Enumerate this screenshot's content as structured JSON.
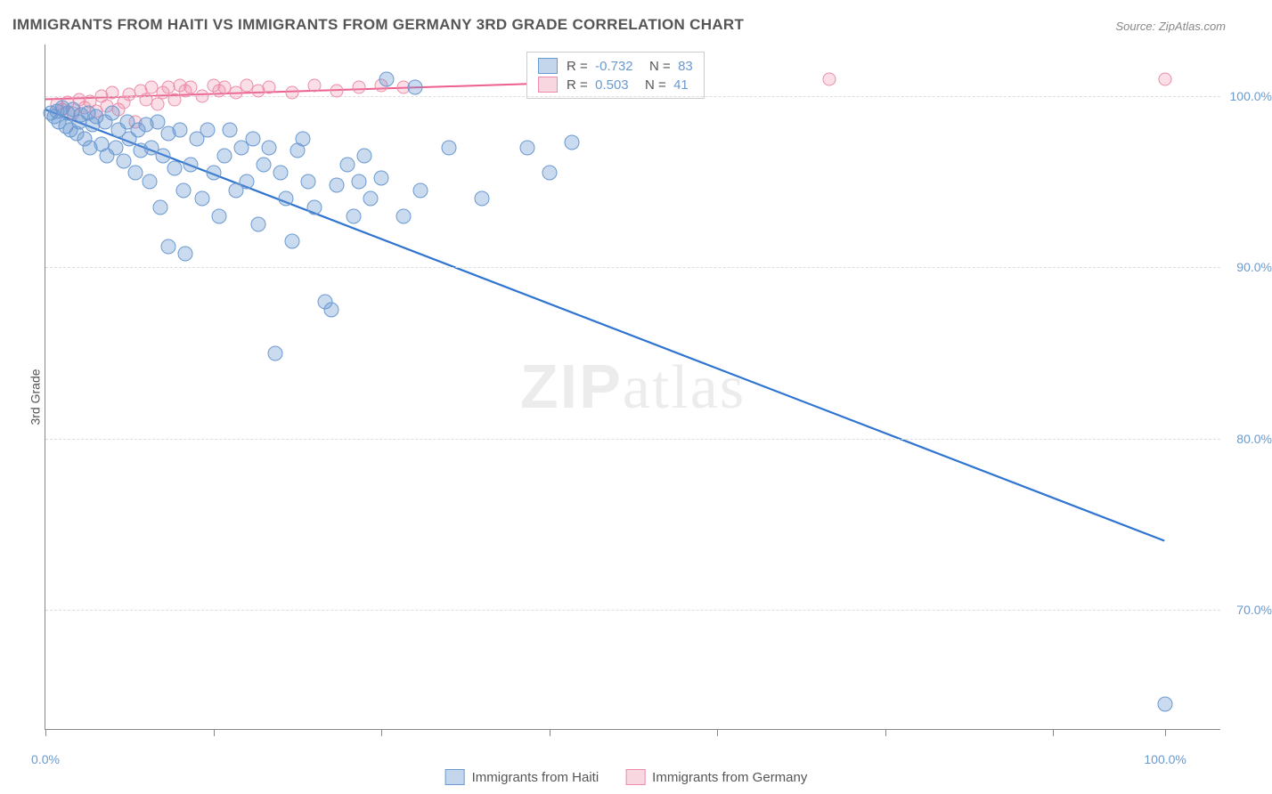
{
  "title": "IMMIGRANTS FROM HAITI VS IMMIGRANTS FROM GERMANY 3RD GRADE CORRELATION CHART",
  "source": "Source: ZipAtlas.com",
  "ylabel": "3rd Grade",
  "watermark_zip": "ZIP",
  "watermark_atlas": "atlas",
  "chart": {
    "type": "scatter",
    "xlim": [
      0,
      105
    ],
    "ylim": [
      63,
      103
    ],
    "y_ticks": [
      70,
      80,
      90,
      100
    ],
    "y_tick_labels": [
      "70.0%",
      "80.0%",
      "90.0%",
      "100.0%"
    ],
    "x_ticks": [
      0,
      15,
      30,
      45,
      60,
      75,
      90,
      100
    ],
    "x_tick_labels_shown": {
      "0": "0.0%",
      "100": "100.0%"
    },
    "background_color": "#ffffff",
    "grid_color": "#dddddd",
    "axis_color": "#888888",
    "series": {
      "haiti": {
        "label": "Immigrants from Haiti",
        "color": "#6a99d0",
        "fill_opacity": 0.35,
        "marker_size": 17,
        "R": "-0.732",
        "N": "83",
        "trend": {
          "x1": 0,
          "y1": 99.2,
          "x2": 100,
          "y2": 74.0
        },
        "points": [
          [
            0.5,
            99.0
          ],
          [
            0.8,
            98.8
          ],
          [
            1.0,
            99.1
          ],
          [
            1.2,
            98.5
          ],
          [
            1.5,
            99.3
          ],
          [
            1.8,
            98.2
          ],
          [
            2.0,
            99.0
          ],
          [
            2.2,
            98.0
          ],
          [
            2.5,
            99.2
          ],
          [
            2.8,
            97.8
          ],
          [
            3.0,
            98.5
          ],
          [
            3.2,
            98.9
          ],
          [
            3.5,
            97.5
          ],
          [
            3.8,
            99.0
          ],
          [
            4.0,
            97.0
          ],
          [
            4.2,
            98.3
          ],
          [
            4.5,
            98.8
          ],
          [
            5.0,
            97.2
          ],
          [
            5.3,
            98.5
          ],
          [
            5.5,
            96.5
          ],
          [
            6.0,
            99.0
          ],
          [
            6.3,
            97.0
          ],
          [
            6.5,
            98.0
          ],
          [
            7.0,
            96.2
          ],
          [
            7.3,
            98.5
          ],
          [
            7.5,
            97.5
          ],
          [
            8.0,
            95.5
          ],
          [
            8.3,
            98.0
          ],
          [
            8.5,
            96.8
          ],
          [
            9.0,
            98.3
          ],
          [
            9.3,
            95.0
          ],
          [
            9.5,
            97.0
          ],
          [
            10.0,
            98.5
          ],
          [
            10.3,
            93.5
          ],
          [
            10.5,
            96.5
          ],
          [
            11.0,
            97.8
          ],
          [
            11.0,
            91.2
          ],
          [
            11.5,
            95.8
          ],
          [
            12.0,
            98.0
          ],
          [
            12.3,
            94.5
          ],
          [
            12.5,
            90.8
          ],
          [
            13.0,
            96.0
          ],
          [
            13.5,
            97.5
          ],
          [
            14.0,
            94.0
          ],
          [
            14.5,
            98.0
          ],
          [
            15.0,
            95.5
          ],
          [
            15.5,
            93.0
          ],
          [
            16.0,
            96.5
          ],
          [
            16.5,
            98.0
          ],
          [
            17.0,
            94.5
          ],
          [
            17.5,
            97.0
          ],
          [
            18.0,
            95.0
          ],
          [
            18.5,
            97.5
          ],
          [
            19.0,
            92.5
          ],
          [
            19.5,
            96.0
          ],
          [
            20.0,
            97.0
          ],
          [
            20.5,
            85.0
          ],
          [
            21.0,
            95.5
          ],
          [
            21.5,
            94.0
          ],
          [
            22.0,
            91.5
          ],
          [
            22.5,
            96.8
          ],
          [
            23.0,
            97.5
          ],
          [
            23.5,
            95.0
          ],
          [
            24.0,
            93.5
          ],
          [
            25.0,
            88.0
          ],
          [
            25.5,
            87.5
          ],
          [
            26.0,
            94.8
          ],
          [
            27.0,
            96.0
          ],
          [
            27.5,
            93.0
          ],
          [
            28.0,
            95.0
          ],
          [
            28.5,
            96.5
          ],
          [
            29.0,
            94.0
          ],
          [
            30.0,
            95.2
          ],
          [
            30.5,
            101.0
          ],
          [
            32.0,
            93.0
          ],
          [
            33.0,
            100.5
          ],
          [
            33.5,
            94.5
          ],
          [
            36.0,
            97.0
          ],
          [
            39.0,
            94.0
          ],
          [
            43.0,
            97.0
          ],
          [
            45.0,
            95.5
          ],
          [
            47.0,
            97.3
          ],
          [
            100.0,
            64.5
          ]
        ]
      },
      "germany": {
        "label": "Immigrants from Germany",
        "color": "#ec8caa",
        "fill_opacity": 0.28,
        "marker_size": 15,
        "R": "0.503",
        "N": "41",
        "trend": {
          "x1": 0,
          "y1": 99.8,
          "x2": 48,
          "y2": 100.8
        },
        "points": [
          [
            1.0,
            99.5
          ],
          [
            1.5,
            99.2
          ],
          [
            2.0,
            99.6
          ],
          [
            2.5,
            99.0
          ],
          [
            3.0,
            99.8
          ],
          [
            3.5,
            99.3
          ],
          [
            4.0,
            99.7
          ],
          [
            4.5,
            99.1
          ],
          [
            5.0,
            100.0
          ],
          [
            5.5,
            99.4
          ],
          [
            6.0,
            100.2
          ],
          [
            6.5,
            99.2
          ],
          [
            7.0,
            99.6
          ],
          [
            7.5,
            100.1
          ],
          [
            8.0,
            98.5
          ],
          [
            8.5,
            100.3
          ],
          [
            9.0,
            99.8
          ],
          [
            9.5,
            100.5
          ],
          [
            10.0,
            99.5
          ],
          [
            10.5,
            100.2
          ],
          [
            11.0,
            100.5
          ],
          [
            11.5,
            99.8
          ],
          [
            12.0,
            100.6
          ],
          [
            12.5,
            100.3
          ],
          [
            13.0,
            100.5
          ],
          [
            14.0,
            100.0
          ],
          [
            15.0,
            100.6
          ],
          [
            15.5,
            100.3
          ],
          [
            16.0,
            100.5
          ],
          [
            17.0,
            100.2
          ],
          [
            18.0,
            100.6
          ],
          [
            19.0,
            100.3
          ],
          [
            20.0,
            100.5
          ],
          [
            22.0,
            100.2
          ],
          [
            24.0,
            100.6
          ],
          [
            26.0,
            100.3
          ],
          [
            28.0,
            100.5
          ],
          [
            30.0,
            100.6
          ],
          [
            32.0,
            100.5
          ],
          [
            70.0,
            101.0
          ],
          [
            100.0,
            101.0
          ]
        ]
      }
    }
  },
  "legend_stats": [
    {
      "swatch": "blue",
      "R": "-0.732",
      "N": "83"
    },
    {
      "swatch": "pink",
      "R": "0.503",
      "N": "41"
    }
  ],
  "bottom_legend": [
    {
      "swatch": "blue",
      "label": "Immigrants from Haiti"
    },
    {
      "swatch": "pink",
      "label": "Immigrants from Germany"
    }
  ]
}
